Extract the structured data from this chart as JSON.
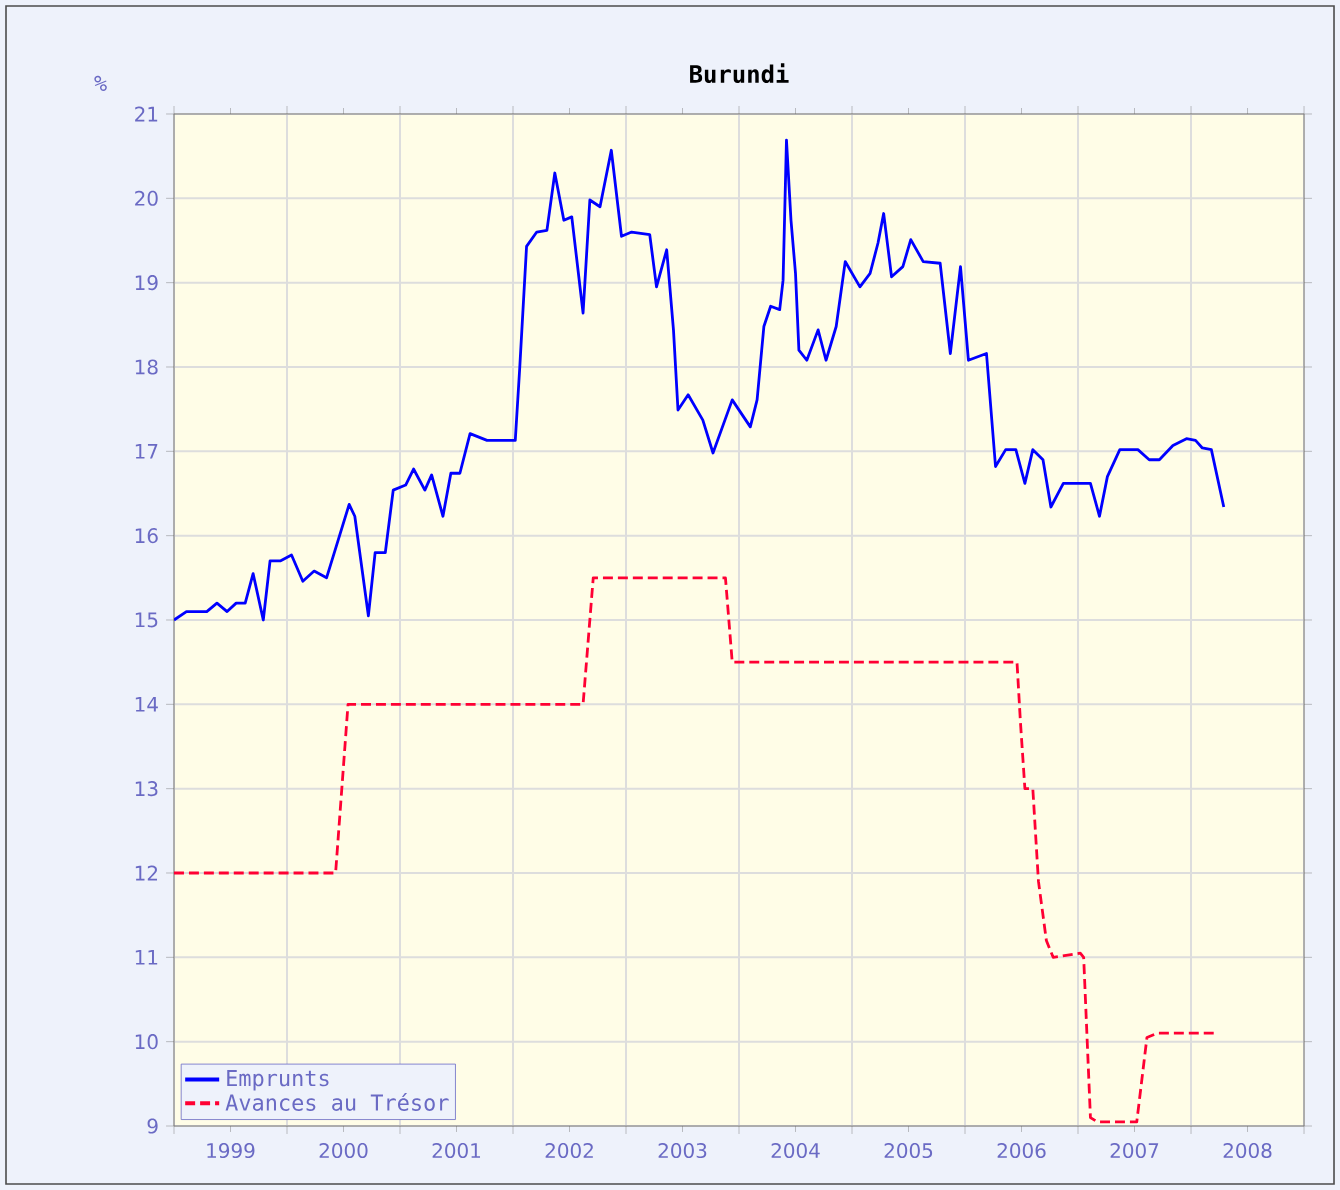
{
  "chart_data": {
    "type": "line",
    "title": "Burundi",
    "ylabel": "%",
    "xlim": [
      1999,
      2009
    ],
    "xticks": [
      {
        "value": 1999,
        "label": null
      },
      {
        "value": 1999.5,
        "label": "1999"
      },
      {
        "value": 2000,
        "label": null
      },
      {
        "value": 2000.5,
        "label": "2000"
      },
      {
        "value": 2001,
        "label": null
      },
      {
        "value": 2001.5,
        "label": "2001"
      },
      {
        "value": 2002,
        "label": null
      },
      {
        "value": 2002.5,
        "label": "2002"
      },
      {
        "value": 2003,
        "label": null
      },
      {
        "value": 2003.5,
        "label": "2003"
      },
      {
        "value": 2004,
        "label": null
      },
      {
        "value": 2004.5,
        "label": "2004"
      },
      {
        "value": 2005,
        "label": null
      },
      {
        "value": 2005.5,
        "label": "2005"
      },
      {
        "value": 2006,
        "label": null
      },
      {
        "value": 2006.5,
        "label": "2006"
      },
      {
        "value": 2007,
        "label": null
      },
      {
        "value": 2007.5,
        "label": "2007"
      },
      {
        "value": 2008,
        "label": null
      },
      {
        "value": 2008.5,
        "label": "2008"
      },
      {
        "value": 2009,
        "label": null
      }
    ],
    "ylim": [
      9,
      21
    ],
    "yticks": [
      9,
      10,
      11,
      12,
      13,
      14,
      15,
      16,
      17,
      18,
      19,
      20,
      21
    ],
    "grid": true,
    "legend": "bottom left",
    "marker": "none",
    "series": [
      {
        "name": "Emprunts",
        "color": "#0000ff",
        "line_style": "solid",
        "x": [
          1999.0,
          1999.11,
          1999.29,
          1999.38,
          1999.47,
          1999.55,
          1999.63,
          1999.7,
          1999.79,
          1999.85,
          1999.94,
          2000.04,
          2000.14,
          2000.24,
          2000.35,
          2000.55,
          2000.6,
          2000.72,
          2000.78,
          2000.87,
          2000.94,
          2001.05,
          2001.12,
          2001.22,
          2001.28,
          2001.38,
          2001.45,
          2001.53,
          2001.62,
          2001.77,
          2002.02,
          2002.06,
          2002.12,
          2002.21,
          2002.3,
          2002.37,
          2002.45,
          2002.52,
          2002.62,
          2002.68,
          2002.77,
          2002.87,
          2002.96,
          2003.05,
          2003.21,
          2003.27,
          2003.36,
          2003.42,
          2003.46,
          2003.55,
          2003.68,
          2003.77,
          2003.94,
          2004.1,
          2004.16,
          2004.22,
          2004.28,
          2004.36,
          2004.39,
          2004.42,
          2004.46,
          2004.5,
          2004.53,
          2004.6,
          2004.7,
          2004.77,
          2004.86,
          2004.94,
          2005.07,
          2005.16,
          2005.23,
          2005.28,
          2005.35,
          2005.45,
          2005.52,
          2005.63,
          2005.78,
          2005.87,
          2005.96,
          2006.03,
          2006.19,
          2006.27,
          2006.36,
          2006.45,
          2006.53,
          2006.6,
          2006.69,
          2006.76,
          2006.87,
          2007.11,
          2007.19,
          2007.26,
          2007.37,
          2007.53,
          2007.63,
          2007.72,
          2007.84,
          2007.96,
          2008.04,
          2008.1,
          2008.18,
          2008.29
        ],
        "values": [
          15.0,
          15.1,
          15.1,
          15.2,
          15.1,
          15.2,
          15.2,
          15.55,
          15.0,
          15.7,
          15.7,
          15.77,
          15.46,
          15.58,
          15.5,
          16.37,
          16.23,
          15.05,
          15.8,
          15.8,
          16.54,
          16.6,
          16.79,
          16.54,
          16.72,
          16.23,
          16.74,
          16.74,
          17.21,
          17.13,
          17.13,
          18.0,
          19.43,
          19.6,
          19.62,
          20.3,
          19.74,
          19.78,
          18.64,
          19.98,
          19.9,
          20.57,
          19.55,
          19.6,
          19.57,
          18.95,
          19.39,
          18.44,
          17.49,
          17.67,
          17.37,
          16.98,
          17.61,
          17.29,
          17.61,
          18.48,
          18.72,
          18.68,
          19.03,
          20.69,
          19.74,
          19.11,
          18.2,
          18.08,
          18.44,
          18.08,
          18.48,
          19.25,
          18.95,
          19.11,
          19.47,
          19.82,
          19.07,
          19.19,
          19.51,
          19.25,
          19.23,
          18.16,
          19.19,
          18.08,
          18.16,
          16.82,
          17.02,
          17.02,
          16.62,
          17.02,
          16.9,
          16.34,
          16.62,
          16.62,
          16.23,
          16.7,
          17.02,
          17.02,
          16.9,
          16.9,
          17.07,
          17.15,
          17.13,
          17.04,
          17.02,
          16.34
        ]
      },
      {
        "name": "Avances au Trésor",
        "color": "#ff0033",
        "line_style": "dashed",
        "x": [
          1999.0,
          2000.43,
          2000.54,
          2002.62,
          2002.71,
          2003.88,
          2003.94,
          2006.46,
          2006.49,
          2006.53,
          2006.6,
          2006.65,
          2006.72,
          2006.78,
          2007.02,
          2007.05,
          2007.11,
          2007.17,
          2007.52,
          2007.61,
          2007.7,
          2008.23
        ],
        "values": [
          12,
          12,
          14,
          14,
          15.5,
          15.5,
          14.5,
          14.5,
          13.8,
          13,
          13,
          11.9,
          11.2,
          11,
          11.05,
          11,
          9.1,
          9.05,
          9.05,
          10.05,
          10.1,
          10.1
        ]
      }
    ]
  }
}
